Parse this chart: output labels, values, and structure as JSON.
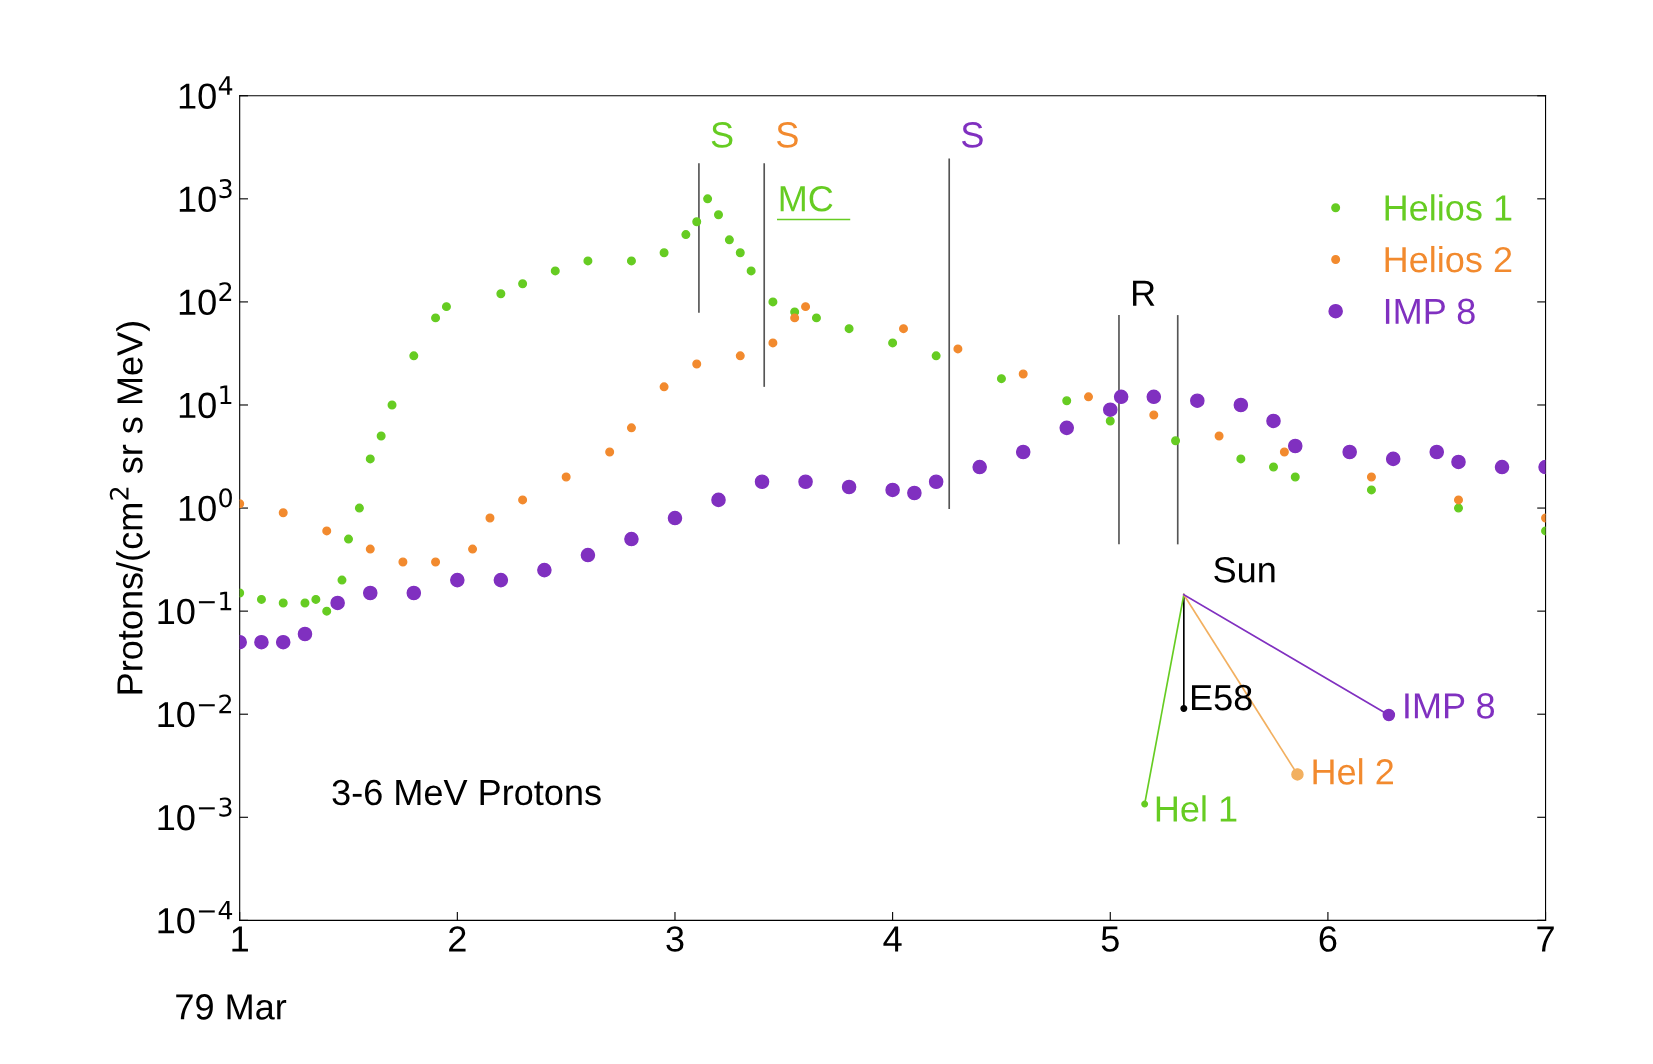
{
  "chart_data": {
    "type": "scatter",
    "ylabel": "Protons/(cm$^{2}$ sr s MeV)",
    "log": "y",
    "xlim": [
      1,
      7
    ],
    "xticks": [
      1,
      2,
      3,
      4,
      5,
      6,
      7
    ],
    "ylim": [
      0.0001,
      10000
    ],
    "yticks": [
      {
        "value": 0.0001,
        "label": "10$^{−4}$"
      },
      {
        "value": 0.001,
        "label": "10$^{−3}$"
      },
      {
        "value": 0.01,
        "label": "10$^{−2}$"
      },
      {
        "value": 0.1,
        "label": "10$^{−1}$"
      },
      {
        "value": 1,
        "label": "10$^{0}$"
      },
      {
        "value": 10,
        "label": "10$^{1}$"
      },
      {
        "value": 100,
        "label": "10$^{2}$"
      },
      {
        "value": 1000,
        "label": "10$^{3}$"
      },
      {
        "value": 10000,
        "label": "10$^{4}$"
      }
    ],
    "grid": false,
    "legend": "top right",
    "marker": "circle",
    "series": [
      {
        "name": "Helios 1",
        "color": "#66cc22",
        "x": [
          1.0,
          1.1,
          1.2,
          1.3,
          1.35,
          1.4,
          1.47,
          1.5,
          1.55,
          1.6,
          1.65,
          1.7,
          1.8,
          1.9,
          1.95,
          2.2,
          2.3,
          2.45,
          2.6,
          2.8,
          2.95,
          3.05,
          3.1,
          3.15,
          3.2,
          3.25,
          3.3,
          3.35,
          3.45,
          3.55,
          3.65,
          3.8,
          4.0,
          4.2,
          4.5,
          4.8,
          5.0,
          5.3,
          5.6,
          5.75,
          5.85,
          6.2,
          6.6,
          7.0
        ],
        "values": [
          0.15,
          0.13,
          0.12,
          0.12,
          0.13,
          0.1,
          0.2,
          0.5,
          1,
          3,
          5,
          10,
          30,
          70,
          90,
          120,
          150,
          200,
          250,
          250,
          300,
          450,
          600,
          1000,
          700,
          400,
          300,
          200,
          100,
          80,
          70,
          55,
          40,
          30,
          18,
          11,
          7,
          4.5,
          3,
          2.5,
          2,
          1.5,
          1,
          0.6
        ]
      },
      {
        "name": "Helios 2",
        "color": "#f28a2e",
        "x": [
          1.0,
          1.2,
          1.4,
          1.6,
          1.75,
          1.9,
          2.07,
          2.15,
          2.3,
          2.5,
          2.7,
          2.8,
          2.95,
          3.1,
          3.3,
          3.45,
          3.55,
          3.6,
          4.05,
          4.3,
          4.6,
          4.9,
          5.2,
          5.5,
          5.8,
          6.2,
          6.6,
          7.0
        ],
        "values": [
          1.1,
          0.9,
          0.6,
          0.4,
          0.3,
          0.3,
          0.4,
          0.8,
          1.2,
          2,
          3.5,
          6,
          15,
          25,
          30,
          40,
          70,
          90,
          55,
          35,
          20,
          12,
          8,
          5,
          3.5,
          2,
          1.2,
          0.8
        ]
      },
      {
        "name": "IMP 8",
        "color": "#8030c0",
        "x": [
          1.0,
          1.1,
          1.2,
          1.3,
          1.45,
          1.6,
          1.8,
          2.0,
          2.2,
          2.4,
          2.6,
          2.8,
          3.0,
          3.2,
          3.4,
          3.6,
          3.8,
          4.0,
          4.1,
          4.2,
          4.4,
          4.6,
          4.8,
          5.0,
          5.05,
          5.2,
          5.4,
          5.6,
          5.75,
          5.85,
          6.1,
          6.3,
          6.5,
          6.6,
          6.8,
          7.0
        ],
        "values": [
          0.05,
          0.05,
          0.05,
          0.06,
          0.12,
          0.15,
          0.15,
          0.2,
          0.2,
          0.25,
          0.35,
          0.5,
          0.8,
          1.2,
          1.8,
          1.8,
          1.6,
          1.5,
          1.4,
          1.8,
          2.5,
          3.5,
          6,
          9,
          12,
          12,
          11,
          10,
          7,
          4,
          3.5,
          3,
          3.5,
          2.8,
          2.5,
          2.5
        ]
      }
    ],
    "ref_lines": [
      {
        "axis": "x",
        "value": 3.11,
        "label": "S"
      },
      {
        "axis": "x",
        "value": 3.41,
        "label": "S"
      },
      {
        "axis": "x",
        "value": 4.26,
        "label": "S"
      },
      {
        "axis": "x",
        "value": 5.04,
        "label": "R"
      },
      {
        "axis": "x",
        "value": 5.31,
        "label": null
      }
    ],
    "annotations": [
      "MC",
      "3-6 MeV Protons",
      "79 Mar",
      "Sun",
      "E58",
      "Hel 1",
      "Hel 2",
      "IMP 8"
    ]
  }
}
